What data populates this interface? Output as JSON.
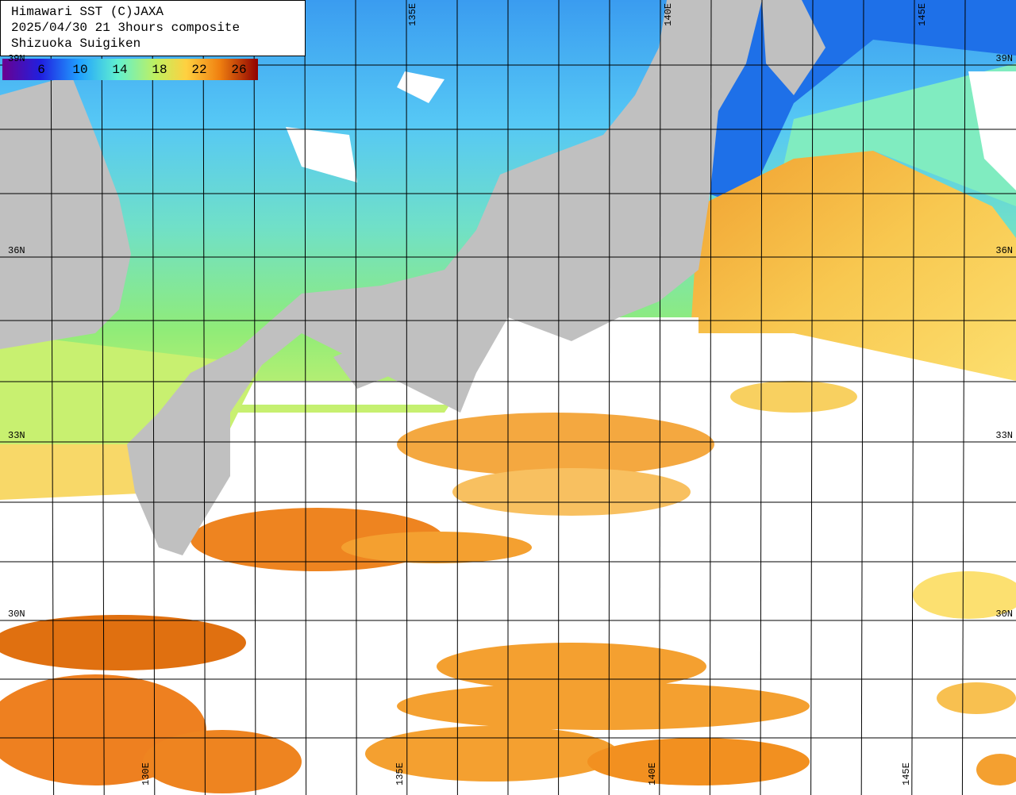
{
  "header": {
    "lines": [
      "Himawari SST (C)JAXA",
      "2025/04/30 21 3hours composite",
      "Shizuoka Suigiken"
    ]
  },
  "colorbar": {
    "ticks": [
      "6",
      "10",
      "14",
      "18",
      "22",
      "26"
    ]
  },
  "grid_labels": {
    "lat_left": [
      "39N",
      "36N",
      "33N",
      "30N"
    ],
    "lat_right": [
      "39N",
      "36N",
      "33N",
      "30N"
    ],
    "lon_top": [
      "135E",
      "140E",
      "145E"
    ],
    "lon_bottom": [
      "130E",
      "135E",
      "140E",
      "145E"
    ]
  }
}
